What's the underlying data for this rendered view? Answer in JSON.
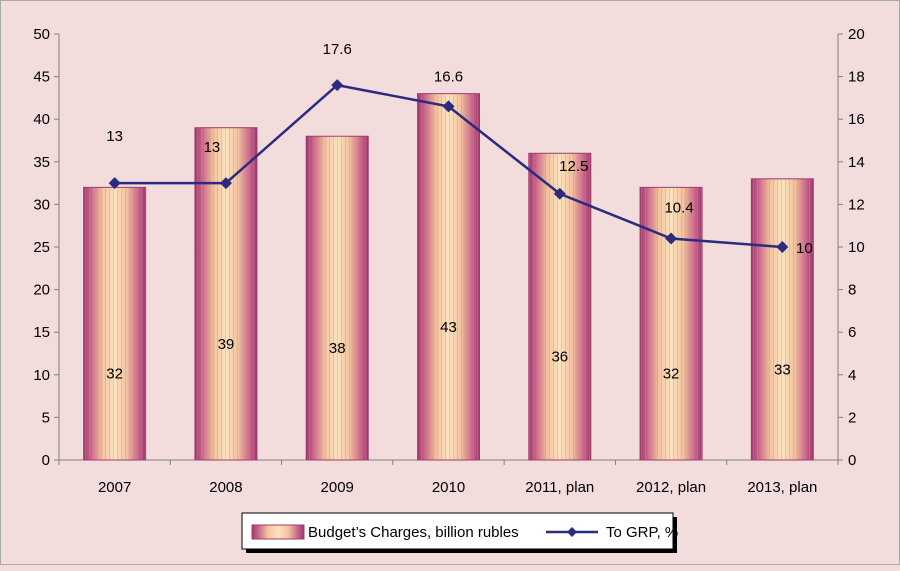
{
  "chart_data": {
    "type": "bar+line",
    "categories": [
      "2007",
      "2008",
      "2009",
      "2010",
      "2011, plan",
      "2012, plan",
      "2013, plan"
    ],
    "series": [
      {
        "name": "Budget’s Charges, billion rubles",
        "type": "bar",
        "axis": "left",
        "values": [
          32,
          39,
          38,
          43,
          36,
          32,
          33
        ],
        "color": "#f5c8a0",
        "edge_color": "#9e3a6e"
      },
      {
        "name": "To GRP, %",
        "type": "line",
        "axis": "right",
        "values": [
          13,
          13,
          17.6,
          16.6,
          12.5,
          10.4,
          10
        ],
        "labels": [
          "13",
          "13",
          "17.6",
          "16.6",
          "12.5",
          "10.4",
          "10"
        ],
        "color": "#2b2c7f"
      }
    ],
    "left_axis": {
      "min": 0,
      "max": 50,
      "step": 5
    },
    "right_axis": {
      "min": 0,
      "max": 20,
      "step": 2
    },
    "legend_position": "bottom"
  }
}
